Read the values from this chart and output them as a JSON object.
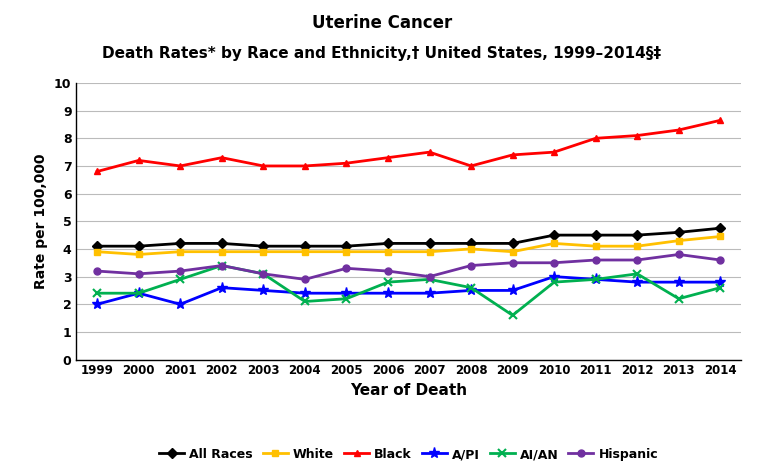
{
  "years": [
    1999,
    2000,
    2001,
    2002,
    2003,
    2004,
    2005,
    2006,
    2007,
    2008,
    2009,
    2010,
    2011,
    2012,
    2013,
    2014
  ],
  "all_races": [
    4.1,
    4.1,
    4.2,
    4.2,
    4.1,
    4.1,
    4.1,
    4.2,
    4.2,
    4.2,
    4.2,
    4.5,
    4.5,
    4.5,
    4.6,
    4.75
  ],
  "white": [
    3.9,
    3.8,
    3.9,
    3.9,
    3.9,
    3.9,
    3.9,
    3.9,
    3.9,
    4.0,
    3.9,
    4.2,
    4.1,
    4.1,
    4.3,
    4.45
  ],
  "black": [
    6.8,
    7.2,
    7.0,
    7.3,
    7.0,
    7.0,
    7.1,
    7.3,
    7.5,
    7.0,
    7.4,
    7.5,
    8.0,
    8.1,
    8.3,
    8.65
  ],
  "api": [
    2.0,
    2.4,
    2.0,
    2.6,
    2.5,
    2.4,
    2.4,
    2.4,
    2.4,
    2.5,
    2.5,
    3.0,
    2.9,
    2.8,
    2.8,
    2.8
  ],
  "aian": [
    2.4,
    2.4,
    2.9,
    3.4,
    3.1,
    2.1,
    2.2,
    2.8,
    2.9,
    2.6,
    1.6,
    2.8,
    2.9,
    3.1,
    2.2,
    2.6
  ],
  "hispanic": [
    3.2,
    3.1,
    3.2,
    3.4,
    3.1,
    2.9,
    3.3,
    3.2,
    3.0,
    3.4,
    3.5,
    3.5,
    3.6,
    3.6,
    3.8,
    3.6
  ],
  "title1": "Uterine Cancer",
  "title2": "Death Rates* by Race and Ethnicity,† United States, 1999–2014§‡",
  "xlabel": "Year of Death",
  "ylabel": "Rate per 100,000",
  "ylim": [
    0,
    10
  ],
  "yticks": [
    0,
    1,
    2,
    3,
    4,
    5,
    6,
    7,
    8,
    9,
    10
  ],
  "colors": {
    "all_races": "#000000",
    "white": "#FFC000",
    "black": "#FF0000",
    "api": "#0000FF",
    "aian": "#00B050",
    "hispanic": "#7030A0"
  },
  "markers": {
    "all_races": "D",
    "white": "s",
    "black": "^",
    "api": "*",
    "aian": "x",
    "hispanic": "o"
  },
  "legend_labels": [
    "All Races",
    "White",
    "Black",
    "A/PI",
    "AI/AN",
    "Hispanic"
  ],
  "background_color": "#FFFFFF"
}
